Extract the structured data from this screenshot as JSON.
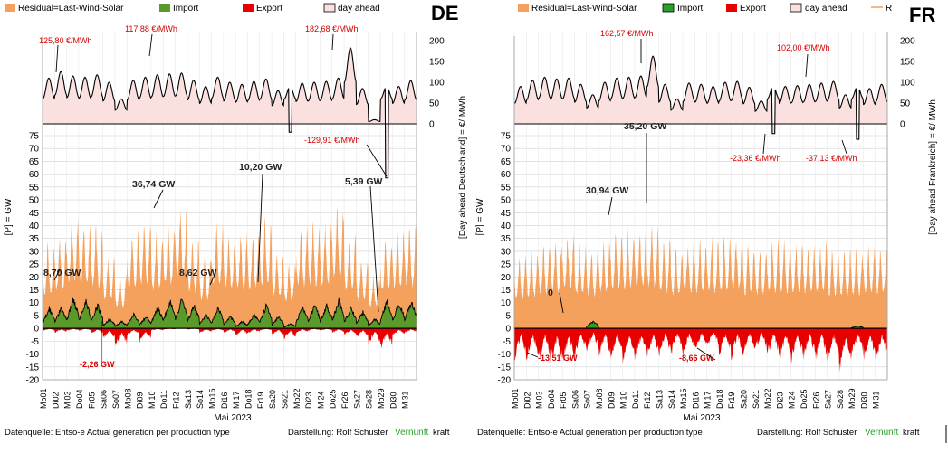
{
  "colors": {
    "residual": "#f4a15d",
    "import": "#5a9a2b",
    "export": "#e80000",
    "dayahead_fill": "#fbe0e0",
    "dayahead_line": "#000000",
    "grid": "#cfcfcf",
    "annotation_red": "#d40000",
    "vernunft_green": "#2aa02a"
  },
  "legend": {
    "residual": "Residual=Last-Wind-Solar",
    "import": "Import",
    "export": "Export",
    "dayahead": "day ahead"
  },
  "chart_data": [
    {
      "type": "area",
      "country": "DE",
      "x_title": "Mai 2023",
      "y_left_title": "[P] = GW",
      "y_right_title": "[Day ahead Deutschland] = €/ MWh",
      "ylim_power": [
        -20,
        75
      ],
      "ylim_price": [
        0,
        200
      ],
      "y_ticks_power": [
        -20,
        -15,
        -10,
        -5,
        0,
        5,
        10,
        15,
        20,
        25,
        30,
        35,
        40,
        45,
        50,
        55,
        60,
        65,
        70,
        75
      ],
      "y_ticks_price": [
        0,
        50,
        100,
        150,
        200
      ],
      "x_days": [
        "Mo01",
        "Di02",
        "Mi03",
        "Do04",
        "Fr05",
        "Sa06",
        "So07",
        "Mo08",
        "Di09",
        "Mi10",
        "Do11",
        "Fr12",
        "Sa13",
        "So14",
        "Mo15",
        "Di16",
        "Mi17",
        "Do18",
        "Fr19",
        "Sa20",
        "So21",
        "Mo22",
        "Di23",
        "Mi24",
        "Do25",
        "Fr26",
        "Sa27",
        "So28",
        "Mo29",
        "Di30",
        "Mi31"
      ],
      "series": [
        {
          "name": "Residual=Last-Wind-Solar",
          "daily_max_gw": [
            36,
            40,
            48,
            45,
            44,
            30,
            22,
            42,
            47,
            40,
            46,
            52,
            38,
            30,
            44,
            40,
            41,
            42,
            46,
            33,
            28,
            44,
            45,
            44,
            52,
            40,
            30,
            22,
            38,
            42,
            44
          ]
        },
        {
          "name": "Import",
          "daily_max_gw": [
            8.7,
            9,
            13,
            12,
            10,
            4,
            3,
            6,
            5,
            9,
            12,
            13,
            10,
            6,
            9,
            5,
            3,
            6,
            10,
            5,
            2,
            9,
            10,
            10,
            12,
            9,
            7,
            4,
            12,
            11,
            12
          ]
        },
        {
          "name": "Export",
          "daily_min_gw": [
            -1,
            -2,
            -1,
            -1,
            -2.26,
            -5,
            -8,
            -3,
            -6,
            -1,
            -0.5,
            0,
            -0.5,
            -2,
            -1,
            -2,
            -3,
            -2,
            -1,
            -3,
            -5,
            -2,
            -1,
            -1,
            -2,
            -3,
            -4,
            -7,
            -9,
            -3,
            -2
          ]
        },
        {
          "name": "day ahead",
          "daily_price_eur": [
            110,
            125.8,
            115,
            112,
            117.88,
            100,
            60,
            105,
            112,
            118,
            120,
            122,
            105,
            90,
            112,
            100,
            95,
            102,
            108,
            80,
            -20,
            98,
            100,
            102,
            110,
            182.68,
            85,
            10,
            -129.91,
            90,
            104
          ]
        }
      ],
      "annotations": {
        "price": [
          "125,80 €/MWh",
          "117,88 €/MWh",
          "182,68 €/MWh",
          "-129,91 €/MWh"
        ],
        "power": [
          "8,70 GW",
          "36,74 GW",
          "10,20 GW",
          "8,62 GW",
          "5,39 GW",
          "-2,26 GW"
        ]
      }
    },
    {
      "type": "area",
      "country": "FR",
      "x_title": "Mai 2023",
      "y_left_title": "[P] = GW",
      "y_right_title": "[Day ahead Frankreich] = €/ MWh",
      "ylim_power": [
        -20,
        75
      ],
      "ylim_price": [
        0,
        200
      ],
      "y_ticks_power": [
        -20,
        -15,
        -10,
        -5,
        0,
        5,
        10,
        15,
        20,
        25,
        30,
        35,
        40,
        45,
        50,
        55,
        60,
        65,
        70,
        75
      ],
      "y_ticks_price": [
        0,
        50,
        100,
        150,
        200
      ],
      "x_days": [
        "Mo01",
        "Di02",
        "Mi03",
        "Do04",
        "Fr05",
        "Sa06",
        "So07",
        "Mo08",
        "Di09",
        "Mi10",
        "Do11",
        "Fr12",
        "Sa13",
        "So14",
        "Mo15",
        "Di16",
        "Mi17",
        "Do18",
        "Fr19",
        "Sa20",
        "So21",
        "Mo22",
        "Di23",
        "Mi24",
        "Do25",
        "Fr26",
        "Sa27",
        "So28",
        "Mo29",
        "Di30",
        "Mi31"
      ],
      "series": [
        {
          "name": "Residual=Last-Wind-Solar",
          "daily_max_gw": [
            31,
            33,
            36,
            38,
            40,
            35,
            33,
            38,
            41,
            42,
            44,
            43,
            38,
            35,
            37,
            38,
            38,
            39,
            40,
            36,
            35,
            37,
            37,
            36,
            37,
            37,
            35,
            33,
            34,
            36,
            36
          ]
        },
        {
          "name": "Import",
          "daily_max_gw": [
            0,
            0,
            0,
            0,
            0,
            0,
            3,
            0,
            0,
            0,
            0,
            0,
            0,
            0,
            0,
            0,
            0,
            0,
            0,
            0,
            0,
            0,
            0,
            0,
            0,
            0,
            0,
            0,
            1,
            0,
            0
          ]
        },
        {
          "name": "Export",
          "daily_min_gw": [
            -13.51,
            -14,
            -15,
            -16,
            -15,
            -12,
            -10,
            -13,
            -14,
            -15,
            -14,
            -13,
            -12,
            -11,
            -12,
            -10,
            -8.66,
            -12,
            -13,
            -11,
            -10,
            -12,
            -14,
            -14,
            -13,
            -14,
            -15,
            -18,
            -12,
            -14,
            -15
          ]
        },
        {
          "name": "day ahead",
          "daily_price_eur": [
            90,
            105,
            112,
            108,
            110,
            95,
            70,
            100,
            110,
            112,
            115,
            162.57,
            95,
            60,
            98,
            95,
            90,
            100,
            102,
            88,
            55,
            -23.36,
            90,
            92,
            95,
            98,
            102,
            70,
            -37.13,
            85,
            95
          ]
        }
      ],
      "annotations": {
        "price": [
          "162,57 €/MWh",
          "102,00 €/MWh",
          "-23,36 €/MWh",
          "-37,13 €/MWh"
        ],
        "power": [
          "35,20 GW",
          "30,94 GW",
          "0",
          "-13,51 GW",
          "-8,66 GW"
        ]
      }
    }
  ],
  "footer": {
    "left_source": "Datenquelle: Entso-e  Actual generation per production type",
    "left_author": "Darstellung:  Rolf Schuster",
    "right_source": "Datenquelle: Entso-e  Actual generation per production type",
    "right_author": "Darstellung:  Rolf Schuster",
    "brand_green": "Vernunft",
    "brand_black": "kraft"
  }
}
